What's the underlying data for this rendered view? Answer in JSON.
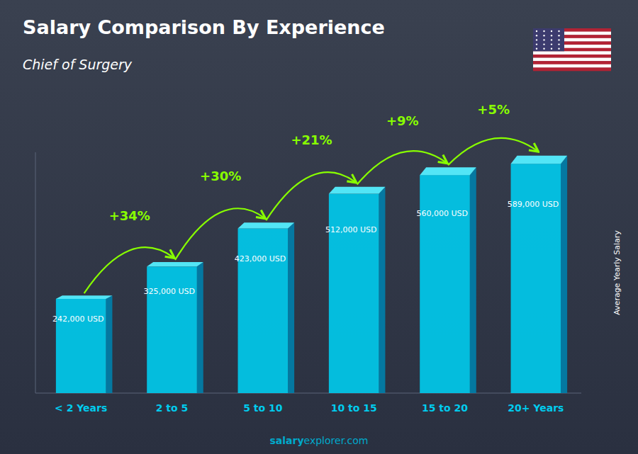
{
  "chart_data": {
    "type": "bar",
    "title": "Salary Comparison By Experience",
    "subtitle": "Chief of Surgery",
    "ylabel": "Average Yearly Salary",
    "categories": [
      "< 2 Years",
      "2 to 5",
      "5 to 10",
      "10 to 15",
      "15 to 20",
      "20+ Years"
    ],
    "values": [
      242000,
      325000,
      423000,
      512000,
      560000,
      589000
    ],
    "value_labels": [
      "242,000 USD",
      "325,000 USD",
      "423,000 USD",
      "512,000 USD",
      "560,000 USD",
      "589,000 USD"
    ],
    "data_labels": true,
    "annotations": [
      "+34%",
      "+30%",
      "+21%",
      "+9%",
      "+5%"
    ],
    "watermark": [
      "salary",
      "explorer.com"
    ],
    "color": "#00ccee",
    "ylim": [
      0,
      618450
    ],
    "tick_labels": "x",
    "grid": false
  }
}
